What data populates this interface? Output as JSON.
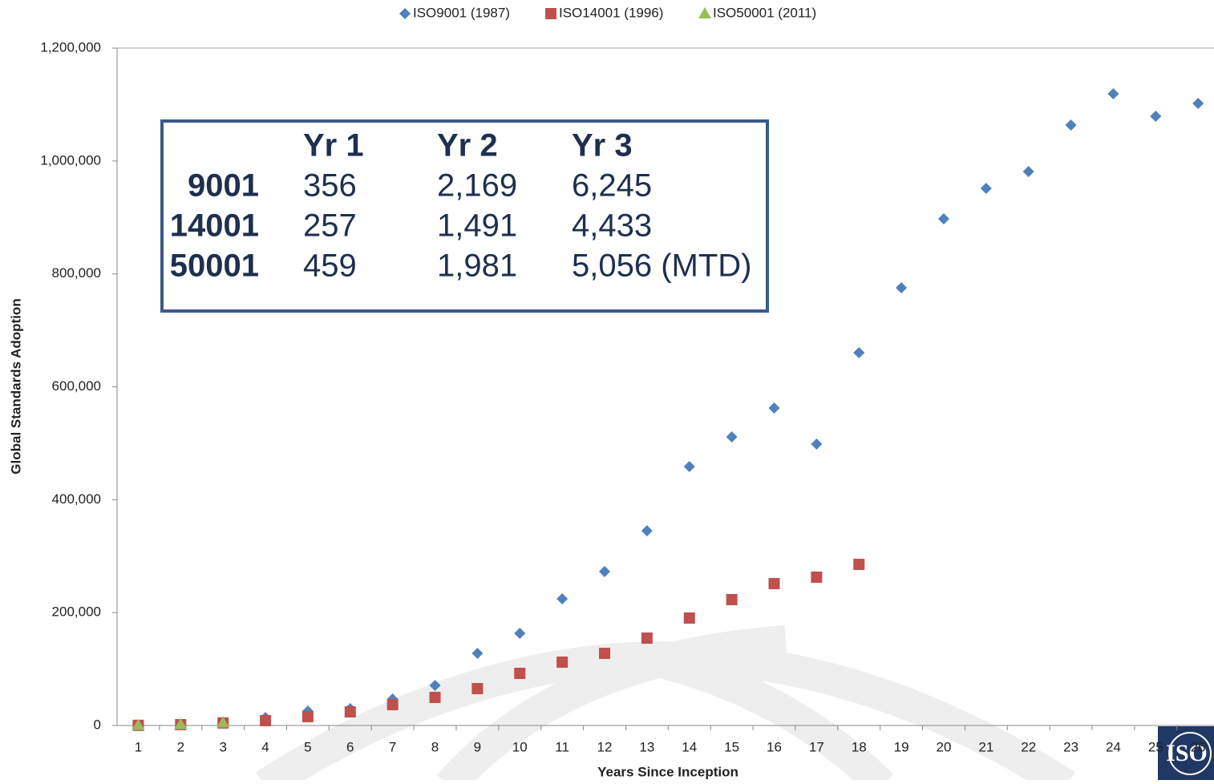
{
  "chart_data": {
    "type": "scatter",
    "x_label": "Years Since Inception",
    "y_label": "Global Standards Adoption",
    "categories": [
      "1",
      "2",
      "3",
      "4",
      "5",
      "6",
      "7",
      "8",
      "9",
      "10",
      "11",
      "12",
      "13",
      "14",
      "15",
      "16",
      "17",
      "18",
      "19",
      "20",
      "21",
      "22",
      "23",
      "24",
      "25",
      "26"
    ],
    "series": [
      {
        "name": "ISO9001 (1987)",
        "color": "#4f81bd",
        "marker": "diamond",
        "values": [
          356,
          2169,
          6245,
          14000,
          25600,
          29800,
          46900,
          71000,
          127800,
          163300,
          224400,
          272700,
          345000,
          458700,
          511200,
          562400,
          498500,
          660400,
          775400,
          897500,
          951500,
          981300,
          1063700,
          1119000,
          1079300,
          1102000
        ]
      },
      {
        "name": "ISO14001 (1996)",
        "color": "#c0504d",
        "marker": "square",
        "values": [
          257,
          1491,
          4433,
          8500,
          15600,
          24100,
          36900,
          49700,
          65300,
          92300,
          112200,
          127800,
          154800,
          190300,
          223000,
          251300,
          262700,
          285400,
          null,
          null,
          null,
          null,
          null,
          null,
          null,
          null
        ]
      },
      {
        "name": "ISO50001 (2011)",
        "color": "#9bbb59",
        "marker": "triangle",
        "values": [
          459,
          1981,
          5056,
          null,
          null,
          null,
          null,
          null,
          null,
          null,
          null,
          null,
          null,
          null,
          null,
          null,
          null,
          null,
          null,
          null,
          null,
          null,
          null,
          null,
          null,
          null
        ]
      }
    ],
    "ylim": [
      0,
      1200000
    ],
    "yticks": [
      0,
      {
        "value": 200000,
        "label": "200,000"
      },
      {
        "value": 400000,
        "label": "400,000"
      },
      {
        "value": 600000,
        "label": "600,000"
      },
      {
        "value": 800000,
        "label": "800,000"
      },
      {
        "value": 1000000,
        "label": "1,000,000"
      },
      {
        "value": 1200000,
        "label": "1,200,000"
      }
    ],
    "legend": "top",
    "table": {
      "header": [
        "Yr 1",
        "Yr 2",
        "Yr 3"
      ],
      "rows": [
        [
          "9001",
          "356",
          "2,169",
          "6,245"
        ],
        [
          "14001",
          "257",
          "1,491",
          "4,433"
        ],
        [
          "50001",
          "459",
          "1,981",
          "5,056 (MTD)"
        ]
      ]
    },
    "logo": "ISO"
  }
}
